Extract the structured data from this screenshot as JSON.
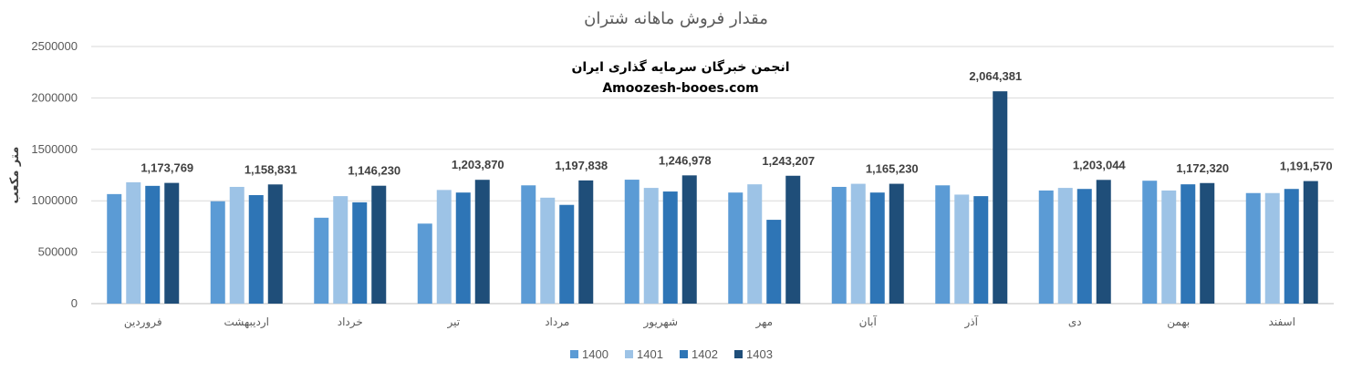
{
  "chart_data": {
    "type": "bar",
    "title": "مقدار فروش ماهانه شتران",
    "ylabel": "متر مکعب",
    "xlabel": "",
    "ylim": [
      0,
      2500000
    ],
    "yticks": [
      "0",
      "500000",
      "1000000",
      "1500000",
      "2000000",
      "2500000"
    ],
    "grid": true,
    "legend_position": "bottom",
    "categories": [
      "فروردین",
      "اردیبهشت",
      "خرداد",
      "تیر",
      "مرداد",
      "شهریور",
      "مهر",
      "آبان",
      "آذر",
      "دی",
      "بهمن",
      "اسفند"
    ],
    "series": [
      {
        "name": "1400",
        "color": "#5b9bd5",
        "values": [
          1065000,
          995000,
          835000,
          778000,
          1150000,
          1205000,
          1080000,
          1135000,
          1150000,
          1100000,
          1195000,
          1075000
        ]
      },
      {
        "name": "1401",
        "color": "#9dc3e6",
        "values": [
          1180000,
          1135000,
          1045000,
          1105000,
          1030000,
          1125000,
          1160000,
          1165000,
          1060000,
          1125000,
          1100000,
          1075000
        ]
      },
      {
        "name": "1402",
        "color": "#2e75b6",
        "values": [
          1145000,
          1055000,
          985000,
          1080000,
          960000,
          1090000,
          815000,
          1080000,
          1045000,
          1115000,
          1160000,
          1115000
        ]
      },
      {
        "name": "1403",
        "color": "#1f4e79",
        "values": [
          1173769,
          1158831,
          1146230,
          1203870,
          1197838,
          1246978,
          1243207,
          1165230,
          2064381,
          1203044,
          1172320,
          1191570
        ]
      }
    ],
    "data_labels": [
      "1,173,769",
      "1,158,831",
      "1,146,230",
      "1,203,870",
      "1,197,838",
      "1,246,978",
      "1,243,207",
      "1,165,230",
      "2,064,381",
      "1,203,044",
      "1,172,320",
      "1,191,570"
    ],
    "annotations": [
      "انجمن خبرگان سرمایه گذاری ایران",
      "Amoozesh-booes.com"
    ]
  }
}
